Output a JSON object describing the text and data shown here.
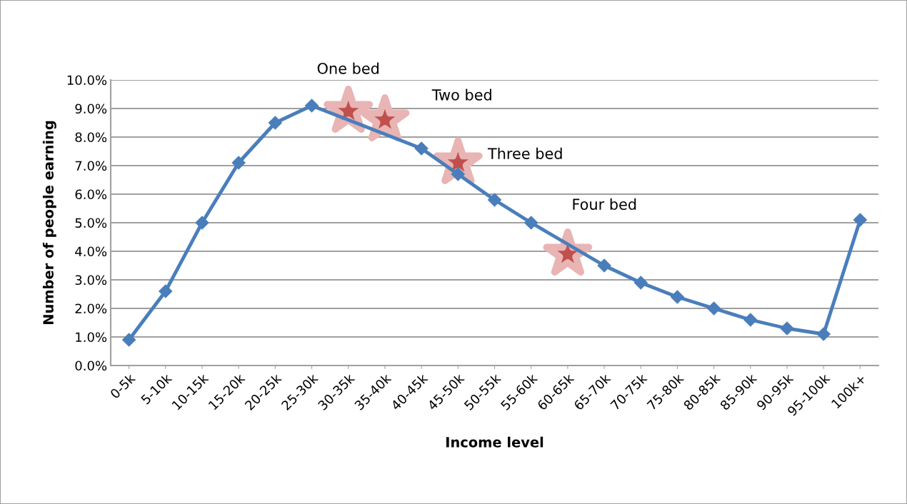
{
  "chart_data": {
    "type": "line",
    "xlabel": "Income level",
    "ylabel": "Number of people earning",
    "categories": [
      "0-5k",
      "5-10k",
      "10-15k",
      "15-20k",
      "20-25k",
      "25-30k",
      "30-35k",
      "35-40k",
      "40-45k",
      "45-50k",
      "50-55k",
      "55-60k",
      "60-65k",
      "65-70k",
      "70-75k",
      "75-80k",
      "80-85k",
      "85-90k",
      "90-95k",
      "95-100k",
      "100k+"
    ],
    "series": [
      {
        "color": "#4a7ebb",
        "marker": "diamond",
        "values": [
          0.9,
          2.6,
          5.0,
          7.1,
          8.5,
          9.1,
          null,
          null,
          7.6,
          6.7,
          5.8,
          5.0,
          null,
          3.5,
          2.9,
          2.4,
          2.0,
          1.6,
          1.3,
          1.1,
          5.1
        ]
      },
      {
        "type": "scatter",
        "color": "#c0504d",
        "marker": "star",
        "values": [
          null,
          null,
          null,
          null,
          null,
          null,
          8.9,
          8.6,
          null,
          7.1,
          null,
          null,
          3.9,
          null,
          null,
          null,
          null,
          null,
          null,
          null,
          null
        ]
      }
    ],
    "ylim": [
      0,
      10
    ],
    "yticks": [
      {
        "value": 0,
        "label": "0.0%"
      },
      {
        "value": 1,
        "label": "1.0%"
      },
      {
        "value": 2,
        "label": "2.0%"
      },
      {
        "value": 3,
        "label": "3.0%"
      },
      {
        "value": 4,
        "label": "4.0%"
      },
      {
        "value": 5,
        "label": "5.0%"
      },
      {
        "value": 6,
        "label": "6.0%"
      },
      {
        "value": 7,
        "label": "7.0%"
      },
      {
        "value": 8,
        "label": "8.0%"
      },
      {
        "value": 9,
        "label": "9.0%"
      },
      {
        "value": 10,
        "label": "10.0%"
      }
    ],
    "grid": "y",
    "legend": false,
    "annotations": [
      "One bed",
      "Two bed",
      "Three bed",
      "Four bed"
    ]
  }
}
